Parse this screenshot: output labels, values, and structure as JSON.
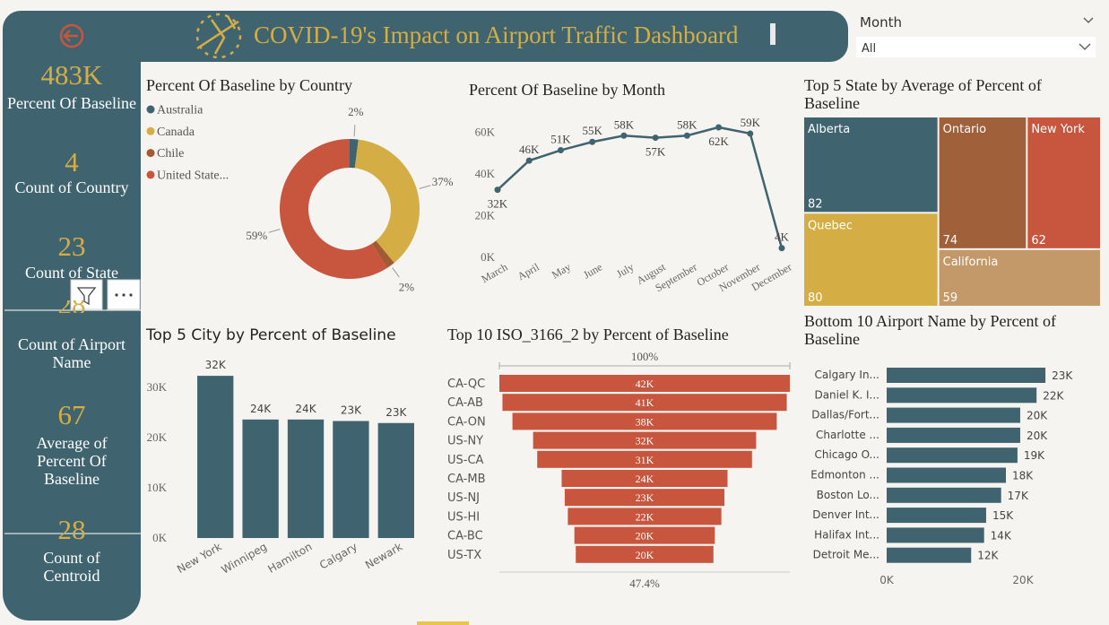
{
  "header": {
    "title": "COVID-19's Impact on Airport Traffic Dashboard"
  },
  "slicer": {
    "label": "Month",
    "value": "All"
  },
  "kpis": [
    {
      "value": "483K",
      "label": "Percent Of Baseline"
    },
    {
      "value": "4",
      "label": "Count of Country"
    },
    {
      "value": "23",
      "label": "Count of State"
    },
    {
      "value": "28",
      "label": "Count of Airport Name"
    },
    {
      "value": "67",
      "label": "Average of Percent Of Baseline"
    },
    {
      "value": "28",
      "label": "Count of Centroid"
    }
  ],
  "chart_data": [
    {
      "type": "donut",
      "title": "Percent Of Baseline by Country",
      "categories": [
        "Australia",
        "Canada",
        "Chile",
        "United State..."
      ],
      "values": [
        2,
        37,
        2,
        59
      ],
      "value_labels": [
        "2%",
        "37%",
        "2%",
        "59%"
      ],
      "colors": [
        "#3f6470",
        "#d4ad45",
        "#a35a33",
        "#c8553d"
      ]
    },
    {
      "type": "line",
      "title": "Percent Of Baseline by Month",
      "categories": [
        "March",
        "April",
        "May",
        "June",
        "July",
        "August",
        "September",
        "October",
        "November",
        "December"
      ],
      "values": [
        32000,
        46000,
        51000,
        55000,
        58000,
        57000,
        58000,
        62000,
        59000,
        4000
      ],
      "value_labels": [
        "32K",
        "46K",
        "51K",
        "55K",
        "58K",
        "57K",
        "58K",
        "62K",
        "59K",
        "4K"
      ],
      "color": "#3f6470",
      "ylim": [
        0,
        65000
      ],
      "yticks": [
        {
          "value": 0,
          "label": "0K"
        },
        {
          "value": 20000,
          "label": "20K"
        },
        {
          "value": 40000,
          "label": "40K"
        },
        {
          "value": 60000,
          "label": "60K"
        }
      ]
    },
    {
      "type": "treemap",
      "title": "Top 5 State by Average of Percent of Baseline",
      "categories": [
        "Alberta",
        "Quebec",
        "Ontario",
        "New York",
        "California"
      ],
      "values": [
        82,
        80,
        74,
        62,
        59
      ],
      "colors": [
        "#3f6470",
        "#d4ad45",
        "#a0603a",
        "#c8553d",
        "#c4996a"
      ]
    },
    {
      "type": "bar",
      "title": "Top 5 City by Percent of Baseline",
      "categories": [
        "New York",
        "Winnipeg",
        "Hamilton",
        "Calgary",
        "Newark"
      ],
      "values": [
        32300,
        23600,
        23600,
        23300,
        22900
      ],
      "value_labels": [
        "32K",
        "24K",
        "24K",
        "23K",
        "23K"
      ],
      "color": "#3f6470",
      "ylim": [
        0,
        35000
      ],
      "yticks": [
        {
          "value": 0,
          "label": "0K"
        },
        {
          "value": 10000,
          "label": "10K"
        },
        {
          "value": 20000,
          "label": "20K"
        },
        {
          "value": 30000,
          "label": "30K"
        }
      ]
    },
    {
      "type": "funnel",
      "title": "Top 10 ISO_3166_2 by Percent of Baseline",
      "categories": [
        "CA-QC",
        "CA-AB",
        "CA-ON",
        "US-NY",
        "US-CA",
        "CA-MB",
        "US-NJ",
        "US-HI",
        "CA-BC",
        "US-TX"
      ],
      "values": [
        42200,
        41300,
        38400,
        32400,
        31200,
        24100,
        23200,
        22300,
        20400,
        20000
      ],
      "value_labels": [
        "42K",
        "41K",
        "38K",
        "32K",
        "31K",
        "24K",
        "23K",
        "22K",
        "20K",
        "20K"
      ],
      "top_label": "100%",
      "bottom_label": "47.4%",
      "color": "#c8553d"
    },
    {
      "type": "hbar",
      "title": "Bottom 10 Airport Name by Percent of Baseline",
      "categories": [
        "Calgary In...",
        "Daniel K. I...",
        "Dallas/Fort...",
        "Charlotte ...",
        "Chicago O...",
        "Edmonton ...",
        "Boston Lo...",
        "Denver Int...",
        "Halifax Int...",
        "Detroit Me..."
      ],
      "values": [
        23300,
        22000,
        19600,
        19600,
        19200,
        17500,
        16800,
        14600,
        14300,
        12400
      ],
      "value_labels": [
        "23K",
        "22K",
        "20K",
        "20K",
        "19K",
        "18K",
        "17K",
        "15K",
        "14K",
        "12K"
      ],
      "color": "#3f6470",
      "xlim": [
        0,
        30000
      ],
      "xticks": [
        {
          "value": 0,
          "label": "0K"
        },
        {
          "value": 20000,
          "label": "20K"
        }
      ]
    }
  ]
}
